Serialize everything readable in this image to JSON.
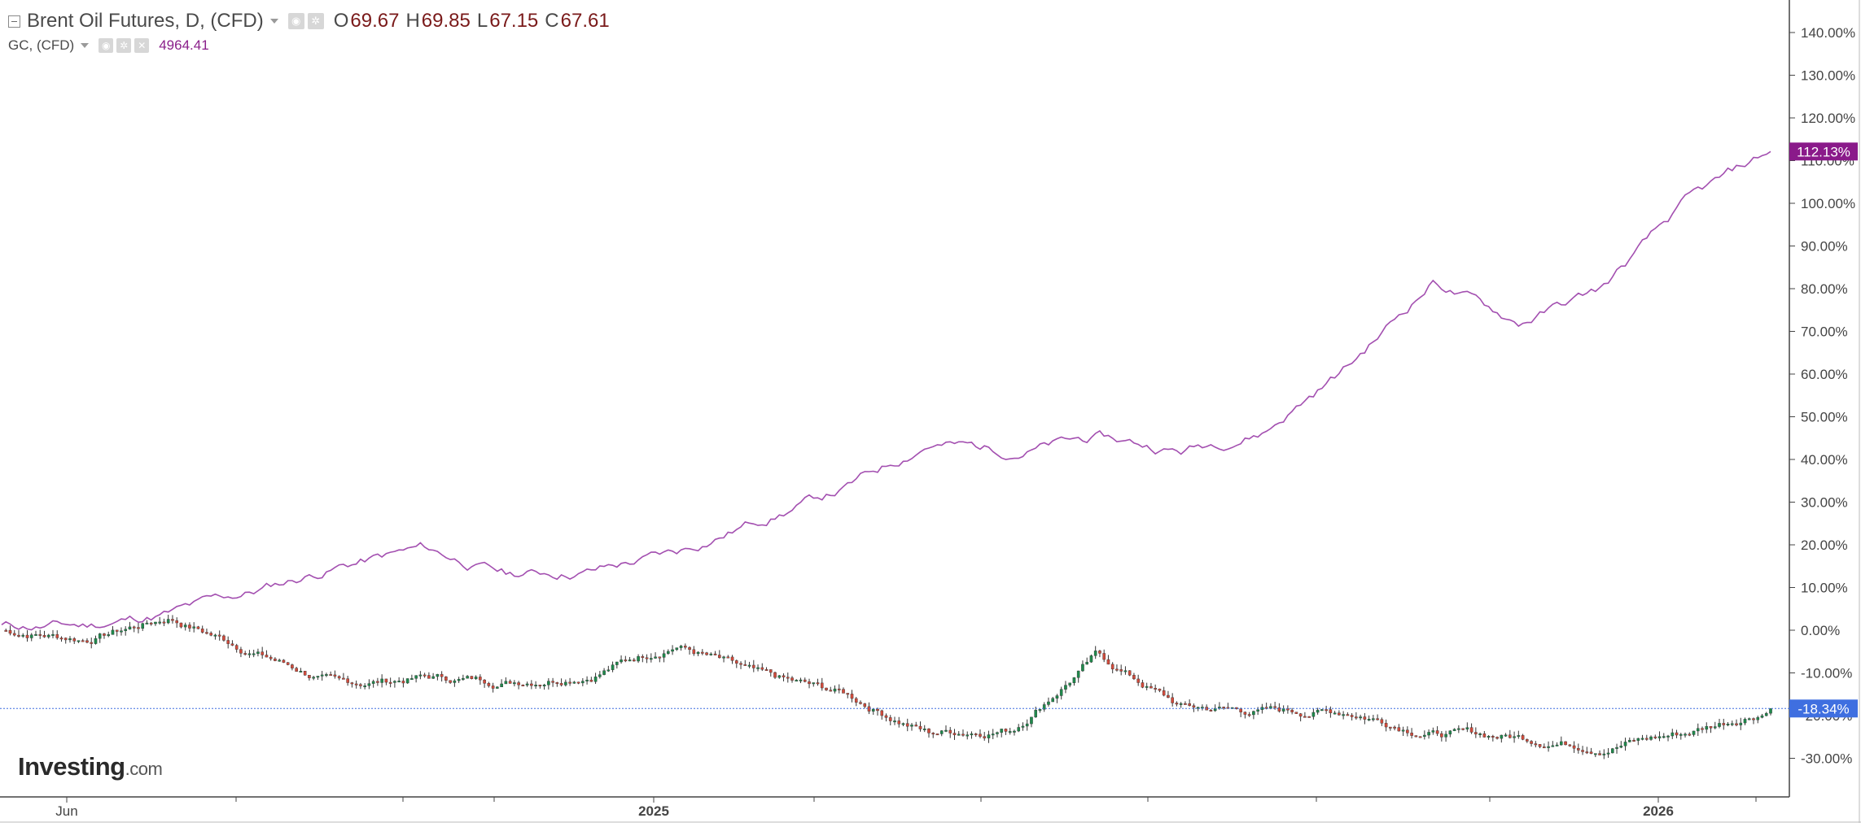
{
  "legend": {
    "main_title": "Brent Oil Futures, D, (CFD)",
    "ohlc": [
      {
        "key": "O",
        "value": "69.67"
      },
      {
        "key": "H",
        "value": "69.85"
      },
      {
        "key": "L",
        "value": "67.15"
      },
      {
        "key": "C",
        "value": "67.61"
      }
    ],
    "compare_title": "GC, (CFD)",
    "compare_value": "4964.41"
  },
  "logo": {
    "brand": "Investing",
    "suffix": ".com"
  },
  "colors": {
    "gold_line": "#a34fb0",
    "gold_badge": "#8a1a8a",
    "brent_badge": "#3f6fe0",
    "candle_up": "#1f8a4c",
    "candle_down": "#d24b3c",
    "grid_axis": "#555555"
  },
  "chart_data": {
    "type": "line",
    "scale": "percent change from start",
    "x_ticks": [
      "Jun",
      "2025",
      "2026"
    ],
    "y_ticks": [
      "140.00%",
      "130.00%",
      "120.00%",
      "110.00%",
      "100.00%",
      "90.00%",
      "80.00%",
      "70.00%",
      "60.00%",
      "50.00%",
      "40.00%",
      "30.00%",
      "20.00%",
      "10.00%",
      "0.00%",
      "-10.00%",
      "-20.00%",
      "-30.00%"
    ],
    "ylim": [
      -34,
      142
    ],
    "badges": [
      {
        "series": "GC, (CFD)",
        "label": "112.13%",
        "value": 112.13
      },
      {
        "series": "Brent Oil Futures, D, (CFD)",
        "label": "-18.34%",
        "value": -18.34
      }
    ],
    "series": [
      {
        "name": "GC, (CFD)",
        "style": "line",
        "x": [
          "2024-05",
          "2024-06",
          "2024-07",
          "2024-08",
          "2024-09",
          "2024-10",
          "2024-11",
          "2024-12",
          "2025-01",
          "2025-02",
          "2025-03",
          "2025-04",
          "2025-05",
          "2025-06",
          "2025-07",
          "2025-08",
          "2025-09",
          "2025-10",
          "2025-11",
          "2025-12",
          "2026-01",
          "2026-02"
        ],
        "values": [
          1,
          1,
          4,
          9,
          15,
          19,
          13,
          14,
          18,
          26,
          33,
          44,
          42,
          45,
          42,
          47,
          62,
          82,
          72,
          80,
          100,
          112.13
        ]
      },
      {
        "name": "Brent Oil Futures, D, (CFD)",
        "style": "candlestick",
        "x": [
          "2024-05",
          "2024-06",
          "2024-07",
          "2024-08",
          "2024-09",
          "2024-10",
          "2024-11",
          "2024-12",
          "2025-01",
          "2025-02",
          "2025-03",
          "2025-04",
          "2025-05",
          "2025-06",
          "2025-07",
          "2025-08",
          "2025-09",
          "2025-10",
          "2025-11",
          "2025-12",
          "2026-01",
          "2026-02"
        ],
        "values": [
          0,
          -2,
          3,
          -5,
          -13,
          -11,
          -12,
          -10,
          -3,
          -11,
          -15,
          -24,
          -23,
          -6,
          -18,
          -19,
          -19,
          -24,
          -25,
          -27,
          -24,
          -18.34
        ]
      }
    ]
  }
}
